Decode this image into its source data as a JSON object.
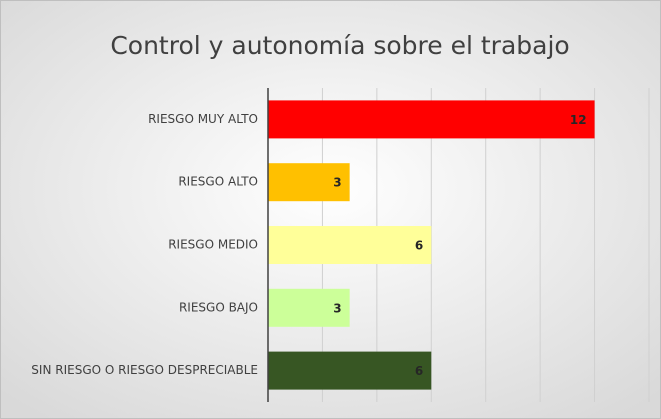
{
  "chart_data": {
    "type": "hbar",
    "title": "Control y autonomía sobre el trabajo",
    "categories": [
      "RIESGO MUY ALTO",
      "RIESGO ALTO",
      "RIESGO MEDIO",
      "RIESGO BAJO",
      "SIN RIESGO O RIESGO DESPRECIABLE"
    ],
    "values": [
      12,
      3,
      6,
      3,
      6
    ],
    "colors": [
      "#ff0000",
      "#ffc000",
      "#ffff99",
      "#ccff99",
      "#375623"
    ],
    "xlim": [
      0,
      14
    ],
    "xticks": [
      0,
      2,
      4,
      6,
      8,
      10,
      12,
      14
    ],
    "grid": true
  }
}
